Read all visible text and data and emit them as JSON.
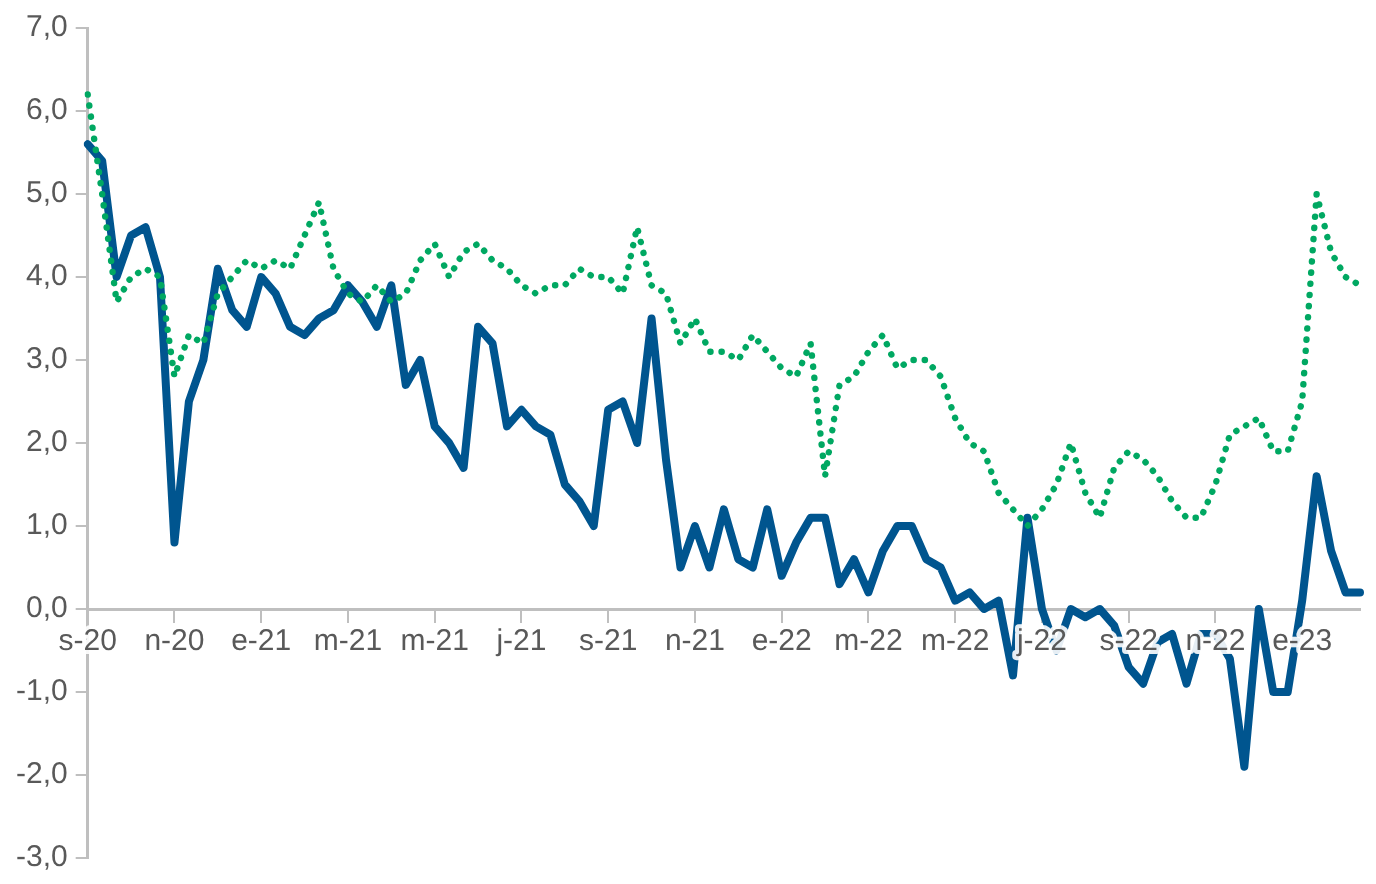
{
  "chart_data": {
    "type": "line",
    "categories": [
      "s-20",
      null,
      null,
      null,
      null,
      null,
      "n-20",
      null,
      null,
      null,
      null,
      null,
      "e-21",
      null,
      null,
      null,
      null,
      null,
      "m-21",
      null,
      null,
      null,
      null,
      null,
      "m-21",
      null,
      null,
      null,
      null,
      null,
      "j-21",
      null,
      null,
      null,
      null,
      null,
      "s-21",
      null,
      null,
      null,
      null,
      null,
      "n-21",
      null,
      null,
      null,
      null,
      null,
      "e-22",
      null,
      null,
      null,
      null,
      null,
      "m-22",
      null,
      null,
      null,
      null,
      null,
      "m-22",
      null,
      null,
      null,
      null,
      null,
      "j-22",
      null,
      null,
      null,
      null,
      null,
      "s-22",
      null,
      null,
      null,
      null,
      null,
      "n-22",
      null,
      null,
      null,
      null,
      null,
      "e-23",
      null,
      null,
      null,
      null
    ],
    "series": [
      {
        "color": "#00558f",
        "line_style": "solid",
        "values": [
          5.6,
          5.4,
          4.0,
          4.5,
          4.6,
          4.0,
          0.8,
          2.5,
          3.0,
          4.1,
          3.6,
          3.4,
          4.0,
          3.8,
          3.4,
          3.3,
          3.5,
          3.6,
          3.9,
          3.7,
          3.4,
          3.9,
          2.7,
          3.0,
          2.2,
          2.0,
          1.7,
          3.4,
          3.2,
          2.2,
          2.4,
          2.2,
          2.1,
          1.5,
          1.3,
          1.0,
          2.4,
          2.5,
          2.0,
          3.5,
          1.8,
          0.5,
          1.0,
          0.5,
          1.2,
          0.6,
          0.5,
          1.2,
          0.4,
          0.8,
          1.1,
          1.1,
          0.3,
          0.6,
          0.2,
          0.7,
          1.0,
          1.0,
          0.6,
          0.5,
          0.1,
          0.2,
          0.0,
          0.1,
          -0.8,
          1.1,
          0.0,
          -0.5,
          0.0,
          -0.1,
          0.0,
          -0.2,
          -0.7,
          -0.9,
          -0.4,
          -0.3,
          -0.9,
          -0.3,
          -0.3,
          -0.6,
          -1.9,
          0.0,
          -1.0,
          -1.0,
          0.1,
          1.6,
          0.7,
          0.2,
          0.2
        ]
      },
      {
        "color": "#00a862",
        "line_style": "dotted",
        "values": [
          6.2,
          5.0,
          3.7,
          4.0,
          4.1,
          4.0,
          2.8,
          3.3,
          3.2,
          3.8,
          4.0,
          4.2,
          4.1,
          4.2,
          4.1,
          4.5,
          4.9,
          4.1,
          3.8,
          3.7,
          3.9,
          3.7,
          3.8,
          4.2,
          4.4,
          4.0,
          4.3,
          4.4,
          4.2,
          4.1,
          3.9,
          3.8,
          3.9,
          3.9,
          4.1,
          4.0,
          4.0,
          3.8,
          4.6,
          3.9,
          3.8,
          3.2,
          3.5,
          3.1,
          3.1,
          3.0,
          3.3,
          3.1,
          2.9,
          2.8,
          3.2,
          1.6,
          2.7,
          2.8,
          3.1,
          3.3,
          2.9,
          3.0,
          3.0,
          2.8,
          2.3,
          2.0,
          1.9,
          1.4,
          1.2,
          1.0,
          1.2,
          1.5,
          2.0,
          1.4,
          1.1,
          1.7,
          1.9,
          1.8,
          1.6,
          1.3,
          1.1,
          1.1,
          1.5,
          2.1,
          2.2,
          2.3,
          1.9,
          1.9,
          2.5,
          5.0,
          4.3,
          4.0,
          3.9
        ]
      }
    ],
    "ylim": [
      -3,
      7
    ],
    "yticks": [
      {
        "value": -3,
        "label": "-3,0"
      },
      {
        "value": -2,
        "label": "-2,0"
      },
      {
        "value": -1,
        "label": "-1,0"
      },
      {
        "value": 0,
        "label": "0,0"
      },
      {
        "value": 1,
        "label": "1,0"
      },
      {
        "value": 2,
        "label": "2,0"
      },
      {
        "value": 3,
        "label": "3,0"
      },
      {
        "value": 4,
        "label": "4,0"
      },
      {
        "value": 5,
        "label": "5,0"
      },
      {
        "value": 6,
        "label": "6,0"
      },
      {
        "value": 7,
        "label": "7,0"
      }
    ],
    "marker": "none"
  }
}
